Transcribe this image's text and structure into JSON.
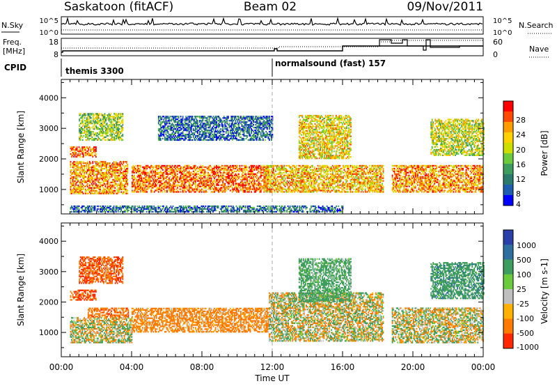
{
  "header": {
    "station": "Saskatoon (fitACF)",
    "beam": "Beam 02",
    "date": "09/Nov/2011"
  },
  "aux": {
    "nsky_label": "N.Sky",
    "nsky_ticks": [
      "10^5",
      "10^0"
    ],
    "nsearch_label": "N.Search",
    "nsearch_ticks": [
      "10^5",
      "10^0"
    ],
    "freq_label_1": "Freq.",
    "freq_label_2": "[MHz]",
    "freq_ticks": [
      "18",
      "8"
    ],
    "nave_label": "Nave",
    "nave_ticks": [
      "60",
      "0"
    ],
    "cpid_label": "CPID",
    "cpid_programs": [
      {
        "name": "themis 3300",
        "start_hour": 0
      },
      {
        "name": "normalsound (fast) 157",
        "start_hour": 12
      }
    ]
  },
  "axes": {
    "xlabel": "Time UT",
    "x_tick_labels": [
      "00:00",
      "04:00",
      "08:00",
      "12:00",
      "16:00",
      "20:00",
      "00:00"
    ],
    "x_range_hours": [
      0,
      24
    ],
    "ylabel": "Slant Range [km]",
    "y_tick_labels": [
      "1000",
      "2000",
      "3000",
      "4000"
    ],
    "y_range_km": [
      200,
      4600
    ]
  },
  "colorbars": {
    "power": {
      "label": "Power [dB]",
      "tick_labels": [
        "28",
        "24",
        "20",
        "16",
        "12",
        "8",
        "4"
      ],
      "colors": [
        "#ff0000",
        "#ff4a00",
        "#ff9c00",
        "#ffd100",
        "#ccdf00",
        "#6bcb3c",
        "#3d9d5e",
        "#2a7a6e",
        "#1f5db0",
        "#0000ff"
      ]
    },
    "velocity": {
      "label": "Velocity [m s-1]",
      "tick_labels": [
        "1000",
        "500",
        "100",
        "25",
        "-25",
        "-100",
        "-500",
        "-1000"
      ],
      "colors": [
        "#2a3fa8",
        "#2e6fa0",
        "#3d9d5e",
        "#6bcb3c",
        "#bfbfbf",
        "#ffb000",
        "#ff7a00",
        "#ff2800"
      ]
    }
  },
  "chart_data": [
    {
      "type": "heatmap",
      "name": "Power",
      "x_unit": "hour UT",
      "y_unit": "km",
      "echo_bands": [
        {
          "t_start": 0.5,
          "t_end": 3.8,
          "range_low": 850,
          "range_high": 1900,
          "typical_db": 24
        },
        {
          "t_start": 0.5,
          "t_end": 2.0,
          "range_low": 2050,
          "range_high": 2400,
          "typical_db": 26
        },
        {
          "t_start": 1.0,
          "t_end": 3.5,
          "range_low": 2600,
          "range_high": 3500,
          "typical_db": 16
        },
        {
          "t_start": 4.0,
          "t_end": 11.8,
          "range_low": 900,
          "range_high": 1800,
          "typical_db": 26
        },
        {
          "t_start": 5.5,
          "t_end": 12.0,
          "range_low": 2600,
          "range_high": 3400,
          "typical_db": 8
        },
        {
          "t_start": 11.5,
          "t_end": 18.3,
          "range_low": 900,
          "range_high": 1800,
          "typical_db": 22
        },
        {
          "t_start": 13.5,
          "t_end": 16.5,
          "range_low": 2000,
          "range_high": 3400,
          "typical_db": 20
        },
        {
          "t_start": 18.8,
          "t_end": 24.0,
          "range_low": 900,
          "range_high": 1800,
          "typical_db": 24
        },
        {
          "t_start": 21.0,
          "t_end": 24.0,
          "range_low": 2100,
          "range_high": 3300,
          "typical_db": 18
        },
        {
          "t_start": 0.5,
          "t_end": 16.0,
          "range_low": 250,
          "range_high": 450,
          "typical_db": 8
        }
      ]
    },
    {
      "type": "heatmap",
      "name": "Velocity",
      "x_unit": "hour UT",
      "y_unit": "km",
      "echo_bands": [
        {
          "t_start": 0.5,
          "t_end": 4.0,
          "range_low": 650,
          "range_high": 1500,
          "typical_ms": 0
        },
        {
          "t_start": 1.5,
          "t_end": 3.8,
          "range_low": 1500,
          "range_high": 1800,
          "typical_ms": -200
        },
        {
          "t_start": 0.5,
          "t_end": 2.0,
          "range_low": 2050,
          "range_high": 2400,
          "typical_ms": -300
        },
        {
          "t_start": 1.0,
          "t_end": 3.5,
          "range_low": 2600,
          "range_high": 3500,
          "typical_ms": -300
        },
        {
          "t_start": 4.0,
          "t_end": 11.8,
          "range_low": 1000,
          "range_high": 1800,
          "typical_ms": -150
        },
        {
          "t_start": 11.8,
          "t_end": 18.3,
          "range_low": 700,
          "range_high": 2300,
          "typical_ms": 0
        },
        {
          "t_start": 13.5,
          "t_end": 16.5,
          "range_low": 2000,
          "range_high": 3400,
          "typical_ms": 150
        },
        {
          "t_start": 18.8,
          "t_end": 24.0,
          "range_low": 650,
          "range_high": 1800,
          "typical_ms": 0
        },
        {
          "t_start": 21.0,
          "t_end": 24.0,
          "range_low": 2100,
          "range_high": 3300,
          "typical_ms": 200
        }
      ]
    }
  ]
}
